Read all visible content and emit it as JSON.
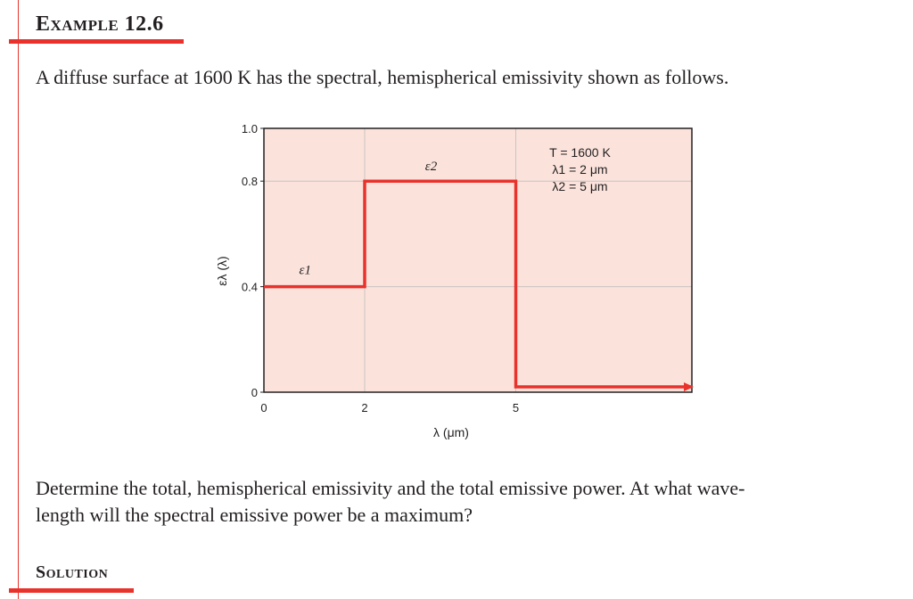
{
  "example": {
    "label": "Example 12.6"
  },
  "problem": {
    "text": "A diffuse surface at 1600 K has the spectral, hemispherical emissivity shown as follows."
  },
  "question": {
    "line1": "Determine the total, hemispherical emissivity and the total emissive power. At what wave-",
    "line2": "length will the spectral emissive power be a maximum?"
  },
  "solution": {
    "label": "Solution"
  },
  "colors": {
    "accent": "#e8322b",
    "plot_bg": "#fbe3dc",
    "line": "#e8322b",
    "grid": "#c9c3c0"
  },
  "chart_data": {
    "type": "line",
    "title": "",
    "xlabel": "λ (μm)",
    "ylabel": "ελ (λ)",
    "x_ticks": [
      {
        "value": 0,
        "label": "0"
      },
      {
        "value": 2,
        "label": "2"
      },
      {
        "value": 5,
        "label": "5"
      }
    ],
    "y_ticks": [
      {
        "value": 0,
        "label": "0"
      },
      {
        "value": 0.4,
        "label": "0.4"
      },
      {
        "value": 0.8,
        "label": "0.8"
      },
      {
        "value": 1.0,
        "label": "1.0"
      }
    ],
    "ylim": [
      0,
      1.0
    ],
    "grid": true,
    "series": [
      {
        "x": [
          0,
          2,
          2,
          5,
          5,
          "∞"
        ],
        "values": [
          0.4,
          0.4,
          0.8,
          0.8,
          0.0,
          0.0
        ]
      }
    ],
    "annotations": [
      {
        "text": "ε1",
        "near": "first segment"
      },
      {
        "text": "ε2",
        "near": "second segment"
      }
    ],
    "legend_lines": [
      "T = 1600 K",
      "λ1 = 2 μm",
      "λ2 = 5 μm"
    ],
    "legend_position": "top-right"
  }
}
